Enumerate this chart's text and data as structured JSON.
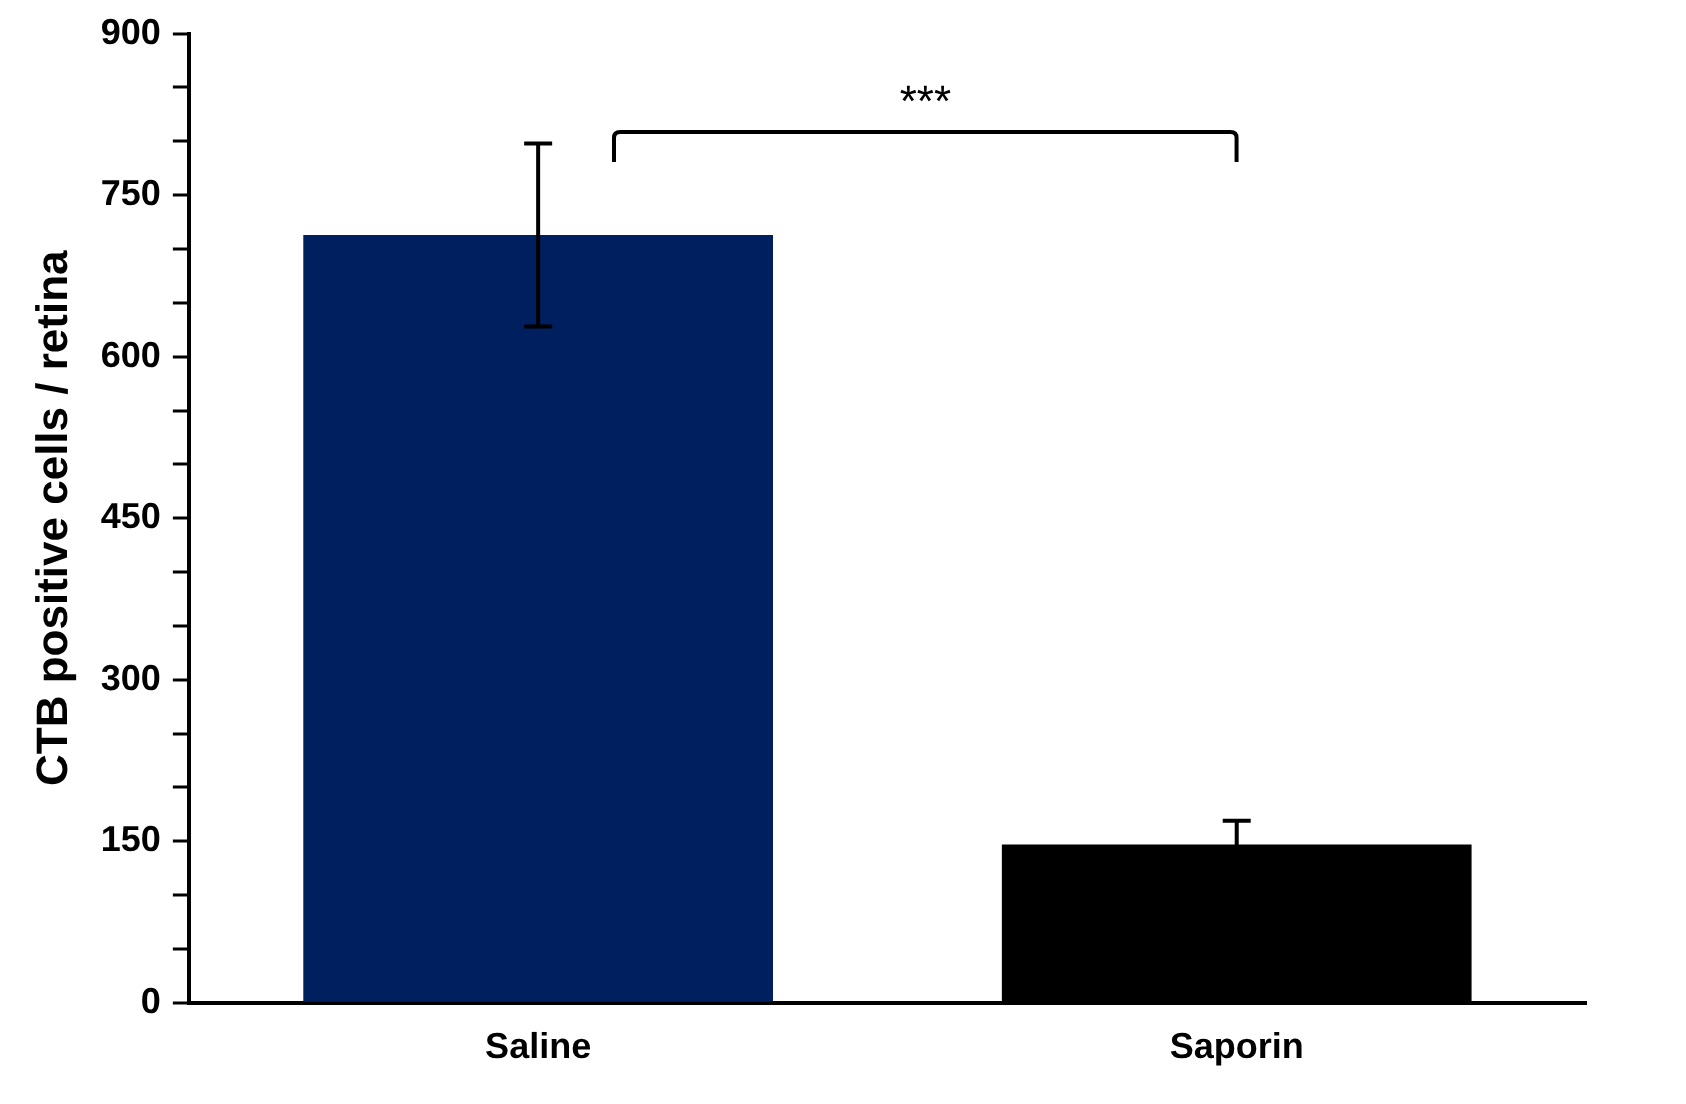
{
  "chart_data": {
    "type": "bar",
    "ylabel": "CTB positive cells / retina",
    "categories": [
      "Saline",
      "Saporin"
    ],
    "values": [
      713,
      147
    ],
    "colors": [
      "#001f5f",
      "#000000"
    ],
    "errors": [
      85,
      22
    ],
    "ylim": [
      0,
      900
    ],
    "yticks": [
      0,
      {
        "value": 50,
        "label": null
      },
      {
        "value": 100,
        "label": null
      },
      150,
      {
        "value": 200,
        "label": null
      },
      {
        "value": 250,
        "label": null
      },
      300,
      {
        "value": 350,
        "label": null
      },
      {
        "value": 400,
        "label": null
      },
      450,
      {
        "value": 500,
        "label": null
      },
      {
        "value": 550,
        "label": null
      },
      600,
      {
        "value": 650,
        "label": null
      },
      {
        "value": 700,
        "label": null
      },
      750,
      {
        "value": 800,
        "label": null
      },
      {
        "value": 850,
        "label": null
      },
      900
    ],
    "grid": false,
    "legend": false,
    "annotations": [
      "***"
    ]
  }
}
